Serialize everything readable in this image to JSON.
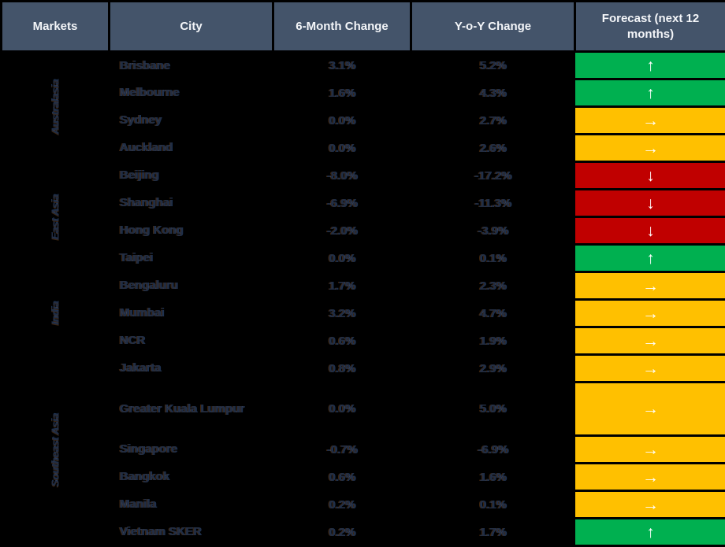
{
  "header": {
    "columns": {
      "markets": "Markets",
      "city": "City",
      "six_month": "6-Month Change",
      "yoy": "Y-o-Y Change",
      "forecast": "Forecast (next 12 months)"
    }
  },
  "groups": [
    {
      "label": "Australasia",
      "span": 4
    },
    {
      "label": "East Asia",
      "span": 4
    },
    {
      "label": "India",
      "span": 3
    },
    {
      "label": "Southeast Asia",
      "span": 6
    }
  ],
  "rows": [
    {
      "group": "Australasia",
      "city": "Brisbane",
      "six_month": "3.1%",
      "yoy": "5.2%",
      "forecast": "up",
      "arrow": "↑"
    },
    {
      "group": "Australasia",
      "city": "Melbourne",
      "six_month": "1.6%",
      "yoy": "4.3%",
      "forecast": "up",
      "arrow": "↑"
    },
    {
      "group": "Australasia",
      "city": "Sydney",
      "six_month": "0.0%",
      "yoy": "2.7%",
      "forecast": "flat",
      "arrow": "→"
    },
    {
      "group": "Australasia",
      "city": "Auckland",
      "six_month": "0.0%",
      "yoy": "2.6%",
      "forecast": "flat",
      "arrow": "→"
    },
    {
      "group": "East Asia",
      "city": "Beijing",
      "six_month": "-8.0%",
      "yoy": "-17.2%",
      "forecast": "down",
      "arrow": "↓"
    },
    {
      "group": "East Asia",
      "city": "Shanghai",
      "six_month": "-6.9%",
      "yoy": "-11.3%",
      "forecast": "down",
      "arrow": "↓"
    },
    {
      "group": "East Asia",
      "city": "Hong Kong",
      "six_month": "-2.0%",
      "yoy": "-3.9%",
      "forecast": "down",
      "arrow": "↓"
    },
    {
      "group": "East Asia",
      "city": "Taipei",
      "six_month": "0.0%",
      "yoy": "0.1%",
      "forecast": "up",
      "arrow": "↑"
    },
    {
      "group": "India",
      "city": "Bengaluru",
      "six_month": "1.7%",
      "yoy": "2.3%",
      "forecast": "flat",
      "arrow": "→"
    },
    {
      "group": "India",
      "city": "Mumbai",
      "six_month": "3.2%",
      "yoy": "4.7%",
      "forecast": "flat",
      "arrow": "→"
    },
    {
      "group": "India",
      "city": "NCR",
      "six_month": "0.6%",
      "yoy": "1.9%",
      "forecast": "flat",
      "arrow": "→"
    },
    {
      "group": "Southeast Asia",
      "city": "Jakarta",
      "six_month": "0.8%",
      "yoy": "2.9%",
      "forecast": "flat",
      "arrow": "→"
    },
    {
      "group": "Southeast Asia",
      "city": "Greater Kuala Lumpur",
      "six_month": "0.0%",
      "yoy": "5.0%",
      "forecast": "flat",
      "arrow": "→"
    },
    {
      "group": "Southeast Asia",
      "city": "Singapore",
      "six_month": "-0.7%",
      "yoy": "-6.9%",
      "forecast": "flat",
      "arrow": "→"
    },
    {
      "group": "Southeast Asia",
      "city": "Bangkok",
      "six_month": "0.6%",
      "yoy": "1.6%",
      "forecast": "flat",
      "arrow": "→"
    },
    {
      "group": "Southeast Asia",
      "city": "Manila",
      "six_month": "0.2%",
      "yoy": "0.1%",
      "forecast": "flat",
      "arrow": "→"
    },
    {
      "group": "Southeast Asia",
      "city": "Vietnam SKER",
      "six_month": "0.2%",
      "yoy": "1.7%",
      "forecast": "up",
      "arrow": "↑"
    }
  ],
  "colors": {
    "header_bg": "#44546A",
    "header_text": "#FFFFFF",
    "body_bg": "#000000",
    "forecast_up": "#00B050",
    "forecast_flat": "#FFC000",
    "forecast_down": "#C00000",
    "arrow": "#FFFFFF"
  },
  "chart_data": {
    "type": "table",
    "title": "Residential market changes and 12-month forecast by city",
    "columns": [
      "Markets",
      "City",
      "6-Month Change",
      "Y-o-Y Change",
      "Forecast (next 12 months)"
    ],
    "rows": [
      [
        "Australasia",
        "Brisbane",
        "3.1%",
        "5.2%",
        "up"
      ],
      [
        "Australasia",
        "Melbourne",
        "1.6%",
        "4.3%",
        "up"
      ],
      [
        "Australasia",
        "Sydney",
        "0.0%",
        "2.7%",
        "flat"
      ],
      [
        "Australasia",
        "Auckland",
        "0.0%",
        "2.6%",
        "flat"
      ],
      [
        "East Asia",
        "Beijing",
        "-8.0%",
        "-17.2%",
        "down"
      ],
      [
        "East Asia",
        "Shanghai",
        "-6.9%",
        "-11.3%",
        "down"
      ],
      [
        "East Asia",
        "Hong Kong",
        "-2.0%",
        "-3.9%",
        "down"
      ],
      [
        "East Asia",
        "Taipei",
        "0.0%",
        "0.1%",
        "up"
      ],
      [
        "India",
        "Bengaluru",
        "1.7%",
        "2.3%",
        "flat"
      ],
      [
        "India",
        "Mumbai",
        "3.2%",
        "4.7%",
        "flat"
      ],
      [
        "India",
        "NCR",
        "0.6%",
        "1.9%",
        "flat"
      ],
      [
        "Southeast Asia",
        "Jakarta",
        "0.8%",
        "2.9%",
        "flat"
      ],
      [
        "Southeast Asia",
        "Greater Kuala Lumpur",
        "0.0%",
        "5.0%",
        "flat"
      ],
      [
        "Southeast Asia",
        "Singapore",
        "-0.7%",
        "-6.9%",
        "flat"
      ],
      [
        "Southeast Asia",
        "Bangkok",
        "0.6%",
        "1.6%",
        "flat"
      ],
      [
        "Southeast Asia",
        "Manila",
        "0.2%",
        "0.1%",
        "flat"
      ],
      [
        "Southeast Asia",
        "Vietnam SKER",
        "0.2%",
        "1.7%",
        "up"
      ]
    ]
  }
}
